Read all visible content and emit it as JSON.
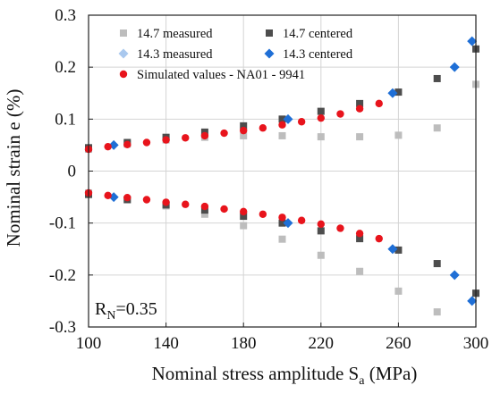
{
  "chart_data": {
    "type": "scatter",
    "xlabel": "Nominal stress amplitude S",
    "xlabel_sub": "a",
    "xlabel_unit": " (MPa)",
    "ylabel": "Nominal strain e (%)",
    "xlim": [
      100,
      300
    ],
    "ylim": [
      -0.3,
      0.3
    ],
    "xticks": [
      100,
      140,
      180,
      220,
      260,
      300
    ],
    "xtick_labels": [
      "100",
      "140",
      "180",
      "220",
      "260",
      "300"
    ],
    "yticks": [
      0.3,
      0.2,
      0.1,
      0,
      -0.1,
      -0.2,
      -0.3
    ],
    "ytick_labels": [
      "0.3",
      "0.2",
      "0.1",
      "0",
      "-0.1",
      "-0.2",
      "-0.3"
    ],
    "grid": true,
    "legend_position": "top",
    "annotation": {
      "main": "R",
      "sub": "N",
      "rest": "=0.35"
    },
    "colors": {
      "measured_147": "#bdbdbd",
      "centered_147": "#4d4d4d",
      "measured_143": "#a9c8ee",
      "centered_143": "#1f6fd6",
      "simulated": "#e8141c",
      "grid": "#d4d4d4",
      "axis": "#222222"
    },
    "series": [
      {
        "name": "14.7 measured",
        "marker": "square",
        "color": "#bdbdbd",
        "x": [
          100,
          120,
          140,
          160,
          180,
          200,
          220,
          240,
          260,
          280,
          300,
          100,
          120,
          140,
          160,
          180,
          200,
          220,
          240,
          260,
          280,
          300
        ],
        "y": [
          0.042,
          0.052,
          0.06,
          0.065,
          0.068,
          0.068,
          0.066,
          0.066,
          0.069,
          0.083,
          0.167,
          -0.042,
          -0.055,
          -0.067,
          -0.083,
          -0.105,
          -0.131,
          -0.162,
          -0.193,
          -0.231,
          -0.271,
          -0.235
        ]
      },
      {
        "name": "14.7 centered",
        "marker": "square",
        "color": "#4d4d4d",
        "x": [
          100,
          120,
          140,
          160,
          180,
          200,
          220,
          240,
          260,
          280,
          300,
          100,
          120,
          140,
          160,
          180,
          200,
          220,
          240,
          260,
          280,
          300
        ],
        "y": [
          0.045,
          0.055,
          0.065,
          0.075,
          0.087,
          0.1,
          0.115,
          0.13,
          0.152,
          0.178,
          0.235,
          -0.045,
          -0.055,
          -0.065,
          -0.075,
          -0.087,
          -0.1,
          -0.115,
          -0.13,
          -0.152,
          -0.178,
          -0.235
        ]
      },
      {
        "name": "14.3 measured",
        "marker": "diamond",
        "color": "#a9c8ee",
        "x": [],
        "y": []
      },
      {
        "name": "14.3 centered",
        "marker": "diamond",
        "color": "#1f6fd6",
        "x": [
          113,
          203,
          257,
          289,
          298,
          113,
          203,
          257,
          289,
          298
        ],
        "y": [
          0.05,
          0.1,
          0.15,
          0.2,
          0.25,
          -0.05,
          -0.1,
          -0.15,
          -0.2,
          -0.25
        ]
      },
      {
        "name": "Simulated values - NA01 - 9941",
        "marker": "circle",
        "color": "#e8141c",
        "x": [
          100,
          110,
          120,
          130,
          140,
          150,
          160,
          170,
          180,
          190,
          200,
          210,
          220,
          230,
          240,
          250,
          100,
          110,
          120,
          130,
          140,
          150,
          160,
          170,
          180,
          190,
          200,
          210,
          220,
          230,
          240,
          250
        ],
        "y": [
          0.042,
          0.047,
          0.051,
          0.055,
          0.06,
          0.064,
          0.068,
          0.073,
          0.078,
          0.083,
          0.089,
          0.095,
          0.102,
          0.11,
          0.12,
          0.13,
          -0.042,
          -0.047,
          -0.051,
          -0.055,
          -0.06,
          -0.064,
          -0.068,
          -0.073,
          -0.078,
          -0.083,
          -0.089,
          -0.095,
          -0.102,
          -0.11,
          -0.12,
          -0.13
        ]
      }
    ]
  }
}
